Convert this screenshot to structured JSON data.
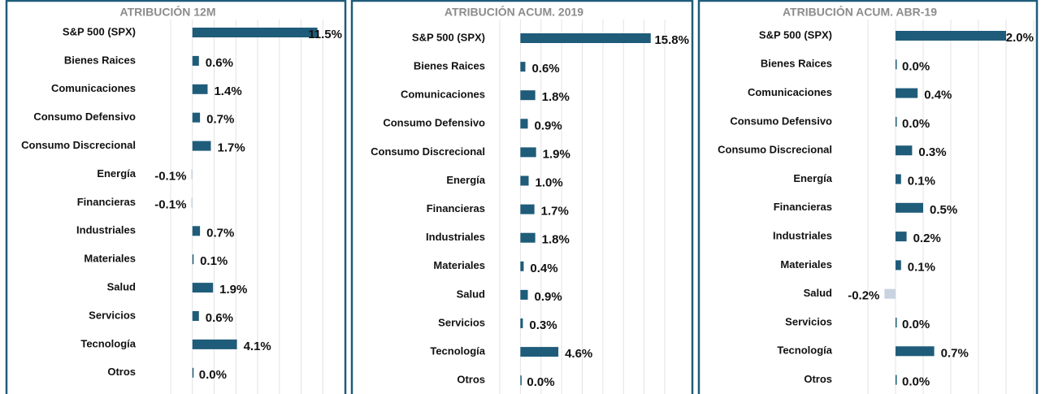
{
  "chart_data": [
    {
      "type": "bar",
      "orientation": "horizontal",
      "title": "ATRIBUCIÓN 12M",
      "categories": [
        "S&P 500 (SPX)",
        "Bienes Raices",
        "Comunicaciones",
        "Consumo Defensivo",
        "Consumo Discrecional",
        "Energía",
        "Financieras",
        "Industriales",
        "Materiales",
        "Salud",
        "Servicios",
        "Tecnología",
        "Otros"
      ],
      "values": [
        11.5,
        0.6,
        1.4,
        0.7,
        1.7,
        -0.1,
        -0.1,
        0.7,
        0.1,
        1.9,
        0.6,
        4.1,
        0.0
      ],
      "value_labels": [
        "11.5%",
        "0.6%",
        "1.4%",
        "0.7%",
        "1.7%",
        "-0.1%",
        "-0.1%",
        "0.7%",
        "0.1%",
        "1.9%",
        "0.6%",
        "4.1%",
        "0.0%"
      ],
      "color": "#1f5c7a",
      "negative_color": "#c9d3e0",
      "xlim": [
        -2,
        14
      ],
      "xticks": [
        -2,
        0,
        2,
        4,
        6,
        8,
        10,
        12,
        14
      ],
      "grid": true
    },
    {
      "type": "bar",
      "orientation": "horizontal",
      "title": "ATRIBUCIÓN ACUM. 2019",
      "categories": [
        "S&P 500 (SPX)",
        "Bienes Raices",
        "Comunicaciones",
        "Consumo Defensivo",
        "Consumo Discrecional",
        "Energía",
        "Financieras",
        "Industriales",
        "Materiales",
        "Salud",
        "Servicios",
        "Tecnología",
        "Otros"
      ],
      "values": [
        15.8,
        0.6,
        1.8,
        0.9,
        1.9,
        1.0,
        1.7,
        1.8,
        0.4,
        0.9,
        0.3,
        4.6,
        0.0
      ],
      "value_labels": [
        "15.8%",
        "0.6%",
        "1.8%",
        "0.9%",
        "1.9%",
        "1.0%",
        "1.7%",
        "1.8%",
        "0.4%",
        "0.9%",
        "0.3%",
        "4.6%",
        "0.0%"
      ],
      "color": "#1f5c7a",
      "negative_color": "#c9d3e0",
      "xlim": [
        -2.5,
        17.5
      ],
      "xticks": [
        -2.5,
        0,
        2.5,
        5,
        7.5,
        10,
        12.5,
        15,
        17.5
      ],
      "grid": true
    },
    {
      "type": "bar",
      "orientation": "horizontal",
      "title": "ATRIBUCIÓN ACUM. ABR-19",
      "categories": [
        "S&P 500 (SPX)",
        "Bienes Raices",
        "Comunicaciones",
        "Consumo Defensivo",
        "Consumo Discrecional",
        "Energía",
        "Financieras",
        "Industriales",
        "Materiales",
        "Salud",
        "Servicios",
        "Tecnología",
        "Otros"
      ],
      "values": [
        2.0,
        0.0,
        0.4,
        0.0,
        0.3,
        0.1,
        0.5,
        0.2,
        0.1,
        -0.2,
        0.0,
        0.7,
        0.0
      ],
      "value_labels": [
        "2.0%",
        "0.0%",
        "0.4%",
        "0.0%",
        "0.3%",
        "0.1%",
        "0.5%",
        "0.2%",
        "0.1%",
        "-0.2%",
        "0.0%",
        "0.7%",
        "0.0%"
      ],
      "color": "#1f5c7a",
      "negative_color": "#c9d3e0",
      "xlim": [
        -0.5,
        2.5
      ],
      "xticks": [
        -0.5,
        0,
        0.5,
        1,
        1.5,
        2,
        2.5
      ],
      "grid": true
    }
  ]
}
